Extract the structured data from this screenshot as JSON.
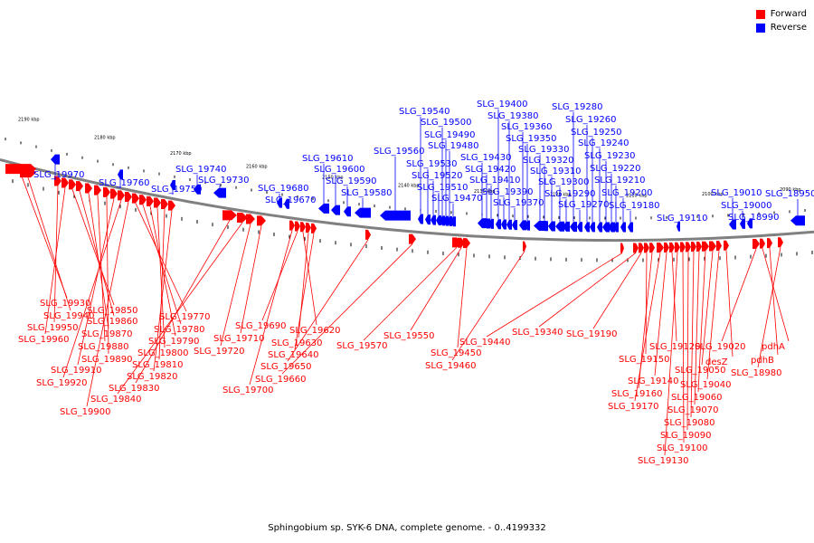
{
  "colors": {
    "forward": "#ff0000",
    "reverse": "#0000ff",
    "axis": "#808080",
    "tick": "#000000"
  },
  "legend": [
    {
      "key": "forward",
      "label": "Forward"
    },
    {
      "key": "reverse",
      "label": "Reverse"
    }
  ],
  "caption": "Sphingobium sp. SYK-6 DNA, complete genome. - 0..4199332",
  "scale_labels": [
    "2190 kbp",
    "2180 kbp",
    "2170 kbp",
    "2160 kbp",
    "2150 kbp",
    "2140 kbp",
    "2130 kbp",
    "2120 kbp",
    "2110 kbp",
    "2100 kbp",
    "2090 kbp"
  ],
  "reverse_genes": [
    "SLG_19970",
    "SLG_19760",
    "SLG_19750",
    "SLG_19740",
    "SLG_19730",
    "SLG_19680",
    "SLG_19670",
    "SLG_19610",
    "SLG_19600",
    "SLG_19590",
    "SLG_19580",
    "SLG_19560",
    "SLG_19540",
    "SLG_19530",
    "SLG_19520",
    "SLG_19510",
    "SLG_19500",
    "SLG_19490",
    "SLG_19480",
    "SLG_19470",
    "SLG_19430",
    "SLG_19420",
    "SLG_19410",
    "SLG_19400",
    "SLG_19390",
    "SLG_19380",
    "SLG_19370",
    "SLG_19360",
    "SLG_19350",
    "SLG_19330",
    "SLG_19320",
    "SLG_19310",
    "SLG_19300",
    "SLG_19290",
    "SLG_19280",
    "SLG_19270",
    "SLG_19260",
    "SLG_19250",
    "SLG_19240",
    "SLG_19230",
    "SLG_19220",
    "SLG_19210",
    "SLG_19200",
    "SLG_19180",
    "SLG_19110",
    "SLG_19010",
    "SLG_19000",
    "SLG_18990",
    "SLG_18950"
  ],
  "forward_genes": [
    "SLG_19930",
    "SLG_19940",
    "SLG_19950",
    "SLG_19960",
    "SLG_19850",
    "SLG_19860",
    "SLG_19870",
    "SLG_19880",
    "SLG_19890",
    "SLG_19910",
    "SLG_19920",
    "SLG_19900",
    "SLG_19770",
    "SLG_19780",
    "SLG_19790",
    "SLG_19800",
    "SLG_19810",
    "SLG_19820",
    "SLG_19830",
    "SLG_19840",
    "SLG_19720",
    "SLG_19710",
    "SLG_19700",
    "SLG_19690",
    "SLG_19620",
    "SLG_19630",
    "SLG_19640",
    "SLG_19650",
    "SLG_19660",
    "SLG_19570",
    "SLG_19550",
    "SLG_19450",
    "SLG_19460",
    "SLG_19440",
    "SLG_19340",
    "SLG_19190",
    "SLG_19150",
    "SLG_19160",
    "SLG_19170",
    "SLG_19140",
    "SLG_19120",
    "SLG_19130",
    "SLG_19100",
    "SLG_19090",
    "SLG_19080",
    "SLG_19070",
    "SLG_19060",
    "SLG_19050",
    "SLG_19040",
    "desZ",
    "SLG_19020",
    "pdhA",
    "pdhB",
    "SLG_18980"
  ]
}
